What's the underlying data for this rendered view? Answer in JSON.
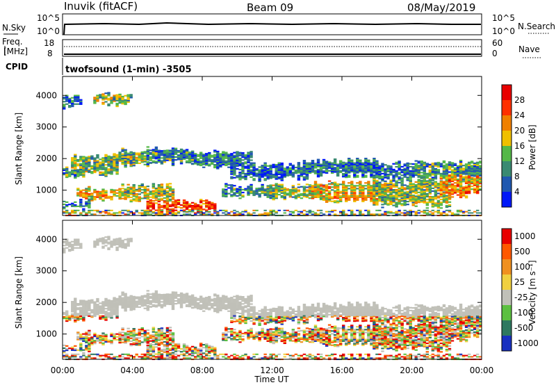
{
  "header": {
    "station": "Inuvik (fitACF)",
    "beam": "Beam 09",
    "date": "08/May/2019"
  },
  "colors": {
    "power_scale": [
      "#0018f8",
      "#2058b0",
      "#3a8a72",
      "#55b848",
      "#f0c000",
      "#f08000",
      "#ff3000",
      "#e80000"
    ],
    "velocity_scale": [
      "#1830c0",
      "#2e7860",
      "#5cc040",
      "#c0c0b8",
      "#f0d040",
      "#f09020",
      "#ff5800",
      "#e80000"
    ],
    "line": "#000000"
  },
  "chart_data": [
    {
      "type": "line",
      "id": "noise",
      "left_label": "N.Sky",
      "right_label": "N.Search",
      "left_ticks": [
        "10^5",
        "10^0"
      ],
      "right_ticks": [
        "10^5",
        "10^0"
      ]
    },
    {
      "type": "line",
      "id": "frequency",
      "left_label_line1": "Freq.",
      "left_label_line2": "[MHz]",
      "left_ticks": [
        "18",
        "8"
      ],
      "right_label": "Nave",
      "right_ticks": [
        "60",
        "0"
      ],
      "cpid_label": "CPID",
      "program": "twofsound (1-min) -3505"
    },
    {
      "type": "heatmap",
      "id": "power",
      "ylabel": "Slant Range [km]",
      "yticks": [
        "4000",
        "3000",
        "2000",
        "1000"
      ],
      "colorbar_label": "Power [dB]",
      "colorbar_ticks": [
        "28",
        "24",
        "20",
        "16",
        "12",
        "8",
        "4"
      ]
    },
    {
      "type": "heatmap",
      "id": "velocity",
      "ylabel": "Slant Range [km]",
      "yticks": [
        "4000",
        "3000",
        "2000",
        "1000"
      ],
      "colorbar_label": "Velocity [m s⁻¹]",
      "colorbar_ticks": [
        "1000",
        "500",
        "100",
        "25",
        "-25",
        "-100",
        "-500",
        "-1000"
      ],
      "xticks": [
        "00:00",
        "04:00",
        "08:00",
        "12:00",
        "16:00",
        "20:00",
        "00:00"
      ],
      "xlabel": "Time UT"
    }
  ]
}
